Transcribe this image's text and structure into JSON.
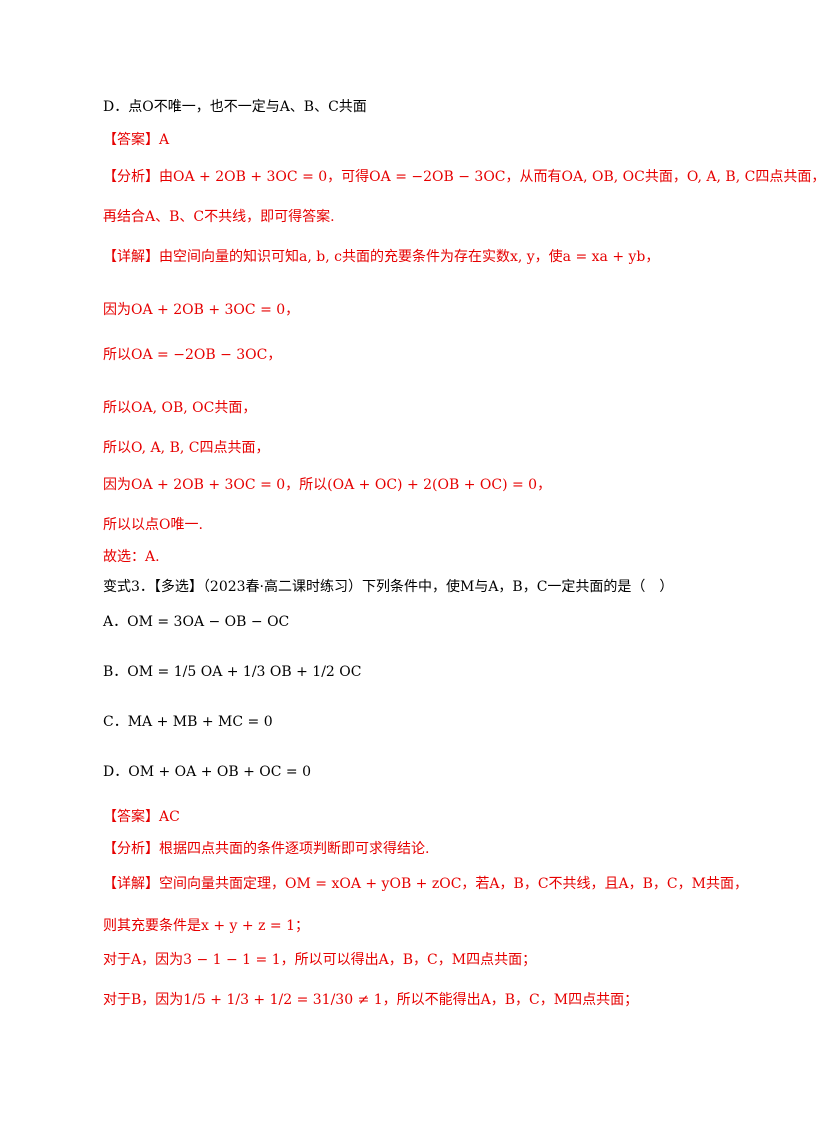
{
  "lines": [
    "D．点O不唯一，也不一定与A、B、C共面",
    "【答案】A",
    "【分析】由OA + 2OB + 3OC = 0，可得OA = −2OB − 3OC，从而有OA, OB, OC共面，O, A, B, C四点共面，",
    "再结合A、B、C不共线，即可得答案.",
    "【详解】由空间向量的知识可知a, b, c共面的充要条件为存在实数x, y，使a = xa + yb，",
    "因为OA + 2OB + 3OC = 0，",
    "所以OA = −2OB − 3OC，",
    "所以OA, OB, OC共面，",
    "所以O, A, B, C四点共面，",
    "因为OA + 2OB + 3OC = 0，所以(OA + OC) + 2(OB + OC) = 0，",
    "所以以点O唯一.",
    "故选：A.",
    "变式3．【多选】（2023春·高二课时练习）下列条件中，使M与A，B，C一定共面的是（　）",
    "A．OM = 3OA − OB − OC",
    "B．OM = 1/5 OA + 1/3 OB + 1/2 OC",
    "C．MA + MB + MC = 0",
    "D．OM + OA + OB + OC = 0",
    "【答案】AC",
    "【分析】根据四点共面的条件逐项判断即可求得结论.",
    "【详解】空间向量共面定理，OM = xOA + yOB + zOC，若A，B，C不共线，且A，B，C，M共面，",
    "则其充要条件是x + y + z = 1；",
    "对于A，因为3 − 1 − 1 = 1，所以可以得出A，B，C，M四点共面；",
    "对于B，因为1/5 + 1/3 + 1/2 = 31/30 ≠ 1，所以不能得出A，B，C，M四点共面；"
  ]
}
